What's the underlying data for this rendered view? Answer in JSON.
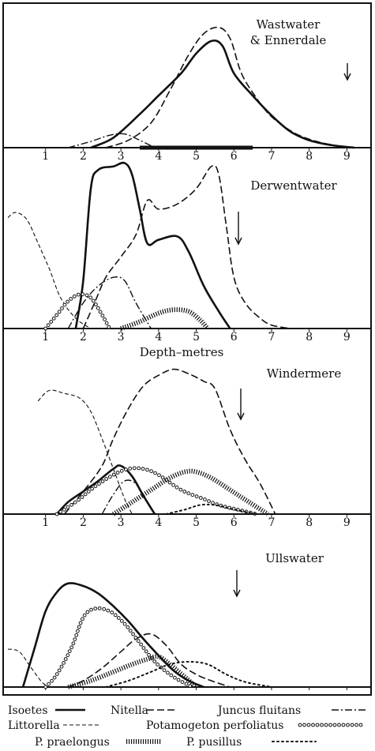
{
  "figure": {
    "axis_title": "Depth–metres",
    "legend": [
      {
        "key": "isoetes",
        "label": "Isoetes"
      },
      {
        "key": "nitella",
        "label": "Nitella"
      },
      {
        "key": "juncus",
        "label": "Juncus fluitans"
      },
      {
        "key": "littorella",
        "label": "Littorella"
      },
      {
        "key": "perfoliatus",
        "label": "Potamogeton perfoliatus"
      },
      {
        "key": "praelongus",
        "label": "P. praelongus"
      },
      {
        "key": "pusillus",
        "label": "P. pusillus"
      }
    ]
  },
  "chart_data": [
    {
      "type": "line",
      "title": "Wastwater & Ennerdale",
      "title_lines": [
        "Wastwater",
        "& Ennerdale"
      ],
      "xlabel": "",
      "ylabel": "",
      "xlim": [
        0,
        9.6
      ],
      "ticks": [
        1,
        2,
        3,
        4,
        5,
        6,
        7,
        8,
        9
      ],
      "show_tick_labels": true,
      "bar": [
        3.5,
        6.5
      ],
      "series": [
        {
          "name": "Isoetes",
          "key": "isoetes",
          "points": [
            [
              2.2,
              0
            ],
            [
              2.8,
              0.08
            ],
            [
              3.5,
              0.27
            ],
            [
              4.0,
              0.42
            ],
            [
              4.6,
              0.6
            ],
            [
              5.0,
              0.76
            ],
            [
              5.4,
              0.86
            ],
            [
              5.7,
              0.82
            ],
            [
              6.0,
              0.6
            ],
            [
              6.5,
              0.42
            ],
            [
              7.0,
              0.26
            ],
            [
              7.5,
              0.13
            ],
            [
              8.0,
              0.06
            ],
            [
              8.6,
              0.02
            ],
            [
              9.2,
              0
            ]
          ]
        },
        {
          "name": "Nitella",
          "key": "nitella",
          "points": [
            [
              2.6,
              0
            ],
            [
              3.2,
              0.06
            ],
            [
              3.8,
              0.2
            ],
            [
              4.3,
              0.46
            ],
            [
              4.8,
              0.75
            ],
            [
              5.2,
              0.92
            ],
            [
              5.6,
              0.97
            ],
            [
              5.9,
              0.88
            ],
            [
              6.2,
              0.6
            ],
            [
              6.6,
              0.4
            ],
            [
              7.0,
              0.25
            ],
            [
              7.6,
              0.12
            ],
            [
              8.2,
              0.05
            ],
            [
              9.0,
              0
            ]
          ]
        },
        {
          "name": "Juncus fluitans",
          "key": "juncus",
          "points": [
            [
              1.6,
              0
            ],
            [
              2.2,
              0.05
            ],
            [
              2.7,
              0.1
            ],
            [
              3.1,
              0.11
            ],
            [
              3.5,
              0.06
            ],
            [
              3.9,
              0
            ]
          ]
        }
      ]
    },
    {
      "type": "line",
      "title": "Derwentwater",
      "title_lines": [
        "Derwentwater"
      ],
      "xlabel": "Depth–metres",
      "ylabel": "",
      "xlim": [
        0,
        9.6
      ],
      "ticks": [
        1,
        2,
        3,
        4,
        5,
        6,
        7,
        8,
        9
      ],
      "show_tick_labels": true,
      "bar": null,
      "series": [
        {
          "name": "Isoetes",
          "key": "isoetes",
          "points": [
            [
              1.8,
              0
            ],
            [
              2.0,
              0.28
            ],
            [
              2.2,
              0.82
            ],
            [
              2.4,
              0.93
            ],
            [
              2.8,
              0.95
            ],
            [
              3.1,
              0.97
            ],
            [
              3.3,
              0.9
            ],
            [
              3.5,
              0.7
            ],
            [
              3.7,
              0.5
            ],
            [
              4.0,
              0.52
            ],
            [
              4.5,
              0.54
            ],
            [
              4.8,
              0.45
            ],
            [
              5.2,
              0.25
            ],
            [
              5.6,
              0.1
            ],
            [
              5.9,
              0
            ]
          ]
        },
        {
          "name": "Nitella",
          "key": "nitella",
          "points": [
            [
              2.0,
              0
            ],
            [
              2.3,
              0.15
            ],
            [
              2.6,
              0.3
            ],
            [
              3.0,
              0.42
            ],
            [
              3.4,
              0.55
            ],
            [
              3.7,
              0.75
            ],
            [
              4.0,
              0.7
            ],
            [
              4.5,
              0.73
            ],
            [
              5.0,
              0.82
            ],
            [
              5.4,
              0.95
            ],
            [
              5.6,
              0.9
            ],
            [
              5.8,
              0.6
            ],
            [
              6.0,
              0.3
            ],
            [
              6.3,
              0.15
            ],
            [
              6.7,
              0.06
            ],
            [
              7.0,
              0.02
            ],
            [
              7.5,
              0
            ]
          ]
        },
        {
          "name": "Juncus fluitans",
          "key": "juncus",
          "points": [
            [
              1.6,
              0
            ],
            [
              2.0,
              0.15
            ],
            [
              2.4,
              0.25
            ],
            [
              2.8,
              0.3
            ],
            [
              3.1,
              0.28
            ],
            [
              3.4,
              0.15
            ],
            [
              3.8,
              0
            ]
          ]
        },
        {
          "name": "Littorella",
          "key": "littorella",
          "points": [
            [
              0.0,
              0.65
            ],
            [
              0.2,
              0.68
            ],
            [
              0.5,
              0.64
            ],
            [
              0.8,
              0.5
            ],
            [
              1.1,
              0.35
            ],
            [
              1.4,
              0.18
            ],
            [
              1.8,
              0.06
            ],
            [
              2.2,
              0
            ]
          ]
        },
        {
          "name": "Potamogeton perfoliatus",
          "key": "perfoliatus",
          "points": [
            [
              1.0,
              0
            ],
            [
              1.3,
              0.08
            ],
            [
              1.6,
              0.16
            ],
            [
              1.9,
              0.2
            ],
            [
              2.2,
              0.18
            ],
            [
              2.5,
              0.08
            ],
            [
              2.7,
              0
            ]
          ]
        },
        {
          "name": "P. praelongus",
          "key": "praelongus",
          "points": [
            [
              3.0,
              0
            ],
            [
              3.5,
              0.04
            ],
            [
              4.0,
              0.09
            ],
            [
              4.4,
              0.11
            ],
            [
              4.8,
              0.1
            ],
            [
              5.1,
              0.05
            ],
            [
              5.3,
              0
            ]
          ]
        }
      ]
    },
    {
      "type": "line",
      "title": "Windermere",
      "title_lines": [
        "Windermere"
      ],
      "xlabel": "",
      "ylabel": "",
      "xlim": [
        0,
        9.6
      ],
      "ticks": [
        1,
        2,
        3,
        4,
        5,
        6,
        7,
        8,
        9
      ],
      "show_tick_labels": true,
      "bar": null,
      "series": [
        {
          "name": "Isoetes",
          "key": "isoetes",
          "points": [
            [
              1.3,
              0
            ],
            [
              1.6,
              0.08
            ],
            [
              2.0,
              0.15
            ],
            [
              2.4,
              0.22
            ],
            [
              2.8,
              0.3
            ],
            [
              3.0,
              0.32
            ],
            [
              3.3,
              0.25
            ],
            [
              3.6,
              0.12
            ],
            [
              3.9,
              0
            ]
          ]
        },
        {
          "name": "Nitella",
          "key": "nitella",
          "points": [
            [
              1.5,
              0
            ],
            [
              2.0,
              0.15
            ],
            [
              2.5,
              0.32
            ],
            [
              2.8,
              0.5
            ],
            [
              3.2,
              0.7
            ],
            [
              3.6,
              0.85
            ],
            [
              4.0,
              0.92
            ],
            [
              4.4,
              0.96
            ],
            [
              4.8,
              0.93
            ],
            [
              5.2,
              0.88
            ],
            [
              5.5,
              0.83
            ],
            [
              5.9,
              0.56
            ],
            [
              6.3,
              0.36
            ],
            [
              6.7,
              0.2
            ],
            [
              7.1,
              0
            ]
          ]
        },
        {
          "name": "Juncus fluitans",
          "key": "juncus",
          "points": [
            [
              2.5,
              0
            ],
            [
              2.8,
              0.13
            ],
            [
              3.1,
              0.22
            ],
            [
              3.4,
              0.2
            ],
            [
              3.7,
              0.08
            ],
            [
              3.9,
              0
            ]
          ]
        },
        {
          "name": "Littorella",
          "key": "littorella",
          "points": [
            [
              0.8,
              0.75
            ],
            [
              1.1,
              0.82
            ],
            [
              1.5,
              0.8
            ],
            [
              1.9,
              0.77
            ],
            [
              2.2,
              0.68
            ],
            [
              2.5,
              0.5
            ],
            [
              2.8,
              0.3
            ],
            [
              3.1,
              0.1
            ],
            [
              3.3,
              0
            ]
          ]
        },
        {
          "name": "Potamogeton perfoliatus",
          "key": "perfoliatus",
          "points": [
            [
              1.3,
              0
            ],
            [
              1.8,
              0.08
            ],
            [
              2.3,
              0.18
            ],
            [
              2.8,
              0.26
            ],
            [
              3.2,
              0.3
            ],
            [
              3.6,
              0.3
            ],
            [
              4.0,
              0.26
            ],
            [
              4.6,
              0.16
            ],
            [
              5.2,
              0.1
            ],
            [
              5.6,
              0.06
            ],
            [
              6.1,
              0.03
            ],
            [
              6.6,
              0
            ]
          ]
        },
        {
          "name": "P. praelongus",
          "key": "praelongus",
          "points": [
            [
              2.8,
              0
            ],
            [
              3.3,
              0.08
            ],
            [
              3.8,
              0.16
            ],
            [
              4.3,
              0.24
            ],
            [
              4.7,
              0.28
            ],
            [
              5.0,
              0.28
            ],
            [
              5.4,
              0.24
            ],
            [
              5.9,
              0.16
            ],
            [
              6.4,
              0.08
            ],
            [
              6.9,
              0
            ]
          ]
        },
        {
          "name": "P. pusillus",
          "key": "pusillus",
          "points": [
            [
              4.2,
              0
            ],
            [
              4.7,
              0.03
            ],
            [
              5.1,
              0.06
            ],
            [
              5.5,
              0.06
            ],
            [
              6.0,
              0.03
            ],
            [
              6.6,
              0
            ]
          ]
        }
      ]
    },
    {
      "type": "line",
      "title": "Ullswater",
      "title_lines": [
        "Ullswater"
      ],
      "xlabel": "",
      "ylabel": "",
      "xlim": [
        0,
        9.6
      ],
      "ticks": [
        1,
        2,
        3,
        4,
        5,
        6,
        7,
        8,
        9
      ],
      "show_tick_labels": false,
      "bar": null,
      "series": [
        {
          "name": "Isoetes",
          "key": "isoetes",
          "points": [
            [
              0.4,
              0
            ],
            [
              0.7,
              0.3
            ],
            [
              1.0,
              0.6
            ],
            [
              1.3,
              0.75
            ],
            [
              1.6,
              0.82
            ],
            [
              2.0,
              0.8
            ],
            [
              2.4,
              0.74
            ],
            [
              2.8,
              0.64
            ],
            [
              3.2,
              0.52
            ],
            [
              3.6,
              0.38
            ],
            [
              4.0,
              0.25
            ],
            [
              4.4,
              0.13
            ],
            [
              4.8,
              0.05
            ],
            [
              5.2,
              0
            ]
          ]
        },
        {
          "name": "Nitella",
          "key": "nitella",
          "points": [
            [
              1.6,
              0
            ],
            [
              2.0,
              0.05
            ],
            [
              2.5,
              0.15
            ],
            [
              3.0,
              0.28
            ],
            [
              3.4,
              0.38
            ],
            [
              3.8,
              0.42
            ],
            [
              4.2,
              0.33
            ],
            [
              4.6,
              0.18
            ],
            [
              5.0,
              0.1
            ],
            [
              5.4,
              0.05
            ],
            [
              5.9,
              0
            ]
          ]
        },
        {
          "name": "Littorella",
          "key": "littorella",
          "points": [
            [
              0.0,
              0.3
            ],
            [
              0.3,
              0.28
            ],
            [
              0.6,
              0.16
            ],
            [
              0.9,
              0.04
            ],
            [
              1.1,
              0
            ]
          ]
        },
        {
          "name": "Potamogeton perfoliatus",
          "key": "perfoliatus",
          "points": [
            [
              1.0,
              0
            ],
            [
              1.3,
              0.1
            ],
            [
              1.7,
              0.32
            ],
            [
              2.0,
              0.55
            ],
            [
              2.3,
              0.62
            ],
            [
              2.7,
              0.6
            ],
            [
              3.1,
              0.5
            ],
            [
              3.5,
              0.35
            ],
            [
              3.9,
              0.2
            ],
            [
              4.4,
              0.08
            ],
            [
              4.9,
              0
            ]
          ]
        },
        {
          "name": "P. praelongus",
          "key": "praelongus",
          "points": [
            [
              1.6,
              0
            ],
            [
              2.2,
              0.05
            ],
            [
              2.8,
              0.12
            ],
            [
              3.3,
              0.18
            ],
            [
              3.7,
              0.22
            ],
            [
              4.0,
              0.24
            ],
            [
              4.3,
              0.18
            ],
            [
              4.7,
              0.08
            ],
            [
              5.0,
              0
            ]
          ]
        },
        {
          "name": "P. pusillus",
          "key": "pusillus",
          "points": [
            [
              2.6,
              0
            ],
            [
              3.2,
              0.05
            ],
            [
              3.8,
              0.12
            ],
            [
              4.3,
              0.18
            ],
            [
              4.8,
              0.2
            ],
            [
              5.3,
              0.18
            ],
            [
              5.8,
              0.1
            ],
            [
              6.3,
              0.04
            ],
            [
              7.0,
              0
            ]
          ]
        }
      ]
    }
  ]
}
